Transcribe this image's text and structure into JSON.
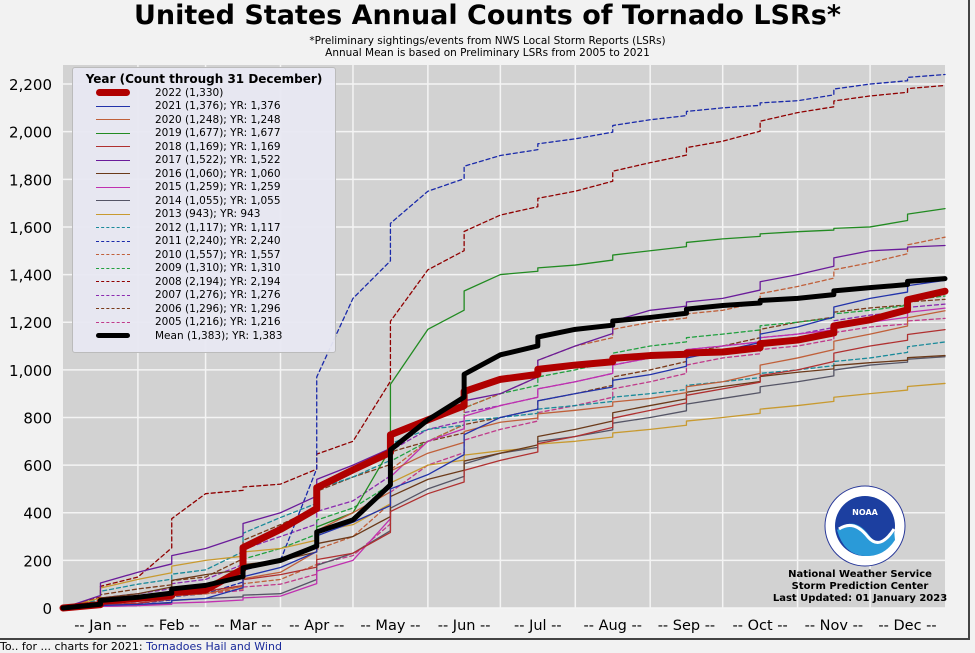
{
  "title": "United States Annual Counts of Tornado LSRs*",
  "subtitle": [
    "*Preliminary sightings/events from NWS Local Storm Reports (LSRs)",
    "Annual Mean is based on Preliminary LSRs from 2005 to 2021"
  ],
  "credit": [
    "National Weather Service",
    "Storm Prediction Center",
    "Last Updated: 01 January 2023"
  ],
  "footer": {
    "text": "To.. for ... charts for 2021:",
    "link": "Tornadoes Hail and Wind"
  },
  "chart_data": {
    "type": "line",
    "title": "United States Annual Counts of Tornado LSRs*",
    "legend_title": "Year (Count through 31 December)",
    "legend_placement": "top-left",
    "grid": true,
    "ylim": [
      0,
      2280
    ],
    "yticks": [
      0,
      200,
      400,
      600,
      800,
      1000,
      1200,
      1400,
      1600,
      1800,
      2000,
      2200
    ],
    "ytick_labels": [
      "0",
      "200",
      "400",
      "600",
      "800",
      "1,000",
      "1,200",
      "1,400",
      "1,600",
      "1,800",
      "2,000",
      "2,200"
    ],
    "xtick_labels": [
      "-- Jan --",
      "-- Feb --",
      "-- Mar --",
      "-- Apr --",
      "-- May --",
      "-- Jun --",
      "-- Jul --",
      "-- Aug --",
      "-- Sep --",
      "-- Oct --",
      "-- Nov --",
      "-- Dec --"
    ],
    "x": [
      "Jan 1",
      "Jan 31",
      "Feb 28",
      "Mar 31",
      "Apr 30",
      "May 31",
      "Jun 30",
      "Jul 31",
      "Aug 31",
      "Sep 30",
      "Oct 31",
      "Nov 30",
      "Dec 31"
    ],
    "series": [
      {
        "name": "2022 (1,330)",
        "color": "#b00000",
        "dash": false,
        "width": 7,
        "values": [
          0,
          40,
          75,
          330,
          580,
          790,
          960,
          1020,
          1060,
          1075,
          1125,
          1210,
          1330
        ]
      },
      {
        "name": "2021 (1,376); YR: 1,376",
        "color": "#2233aa",
        "dash": false,
        "width": 1.3,
        "values": [
          0,
          15,
          40,
          170,
          360,
          560,
          800,
          900,
          980,
          1080,
          1180,
          1300,
          1376
        ]
      },
      {
        "name": "2020 (1,248); YR: 1,248",
        "color": "#c0603a",
        "dash": false,
        "width": 1.3,
        "values": [
          0,
          30,
          60,
          150,
          400,
          650,
          780,
          830,
          880,
          950,
          1050,
          1150,
          1248
        ]
      },
      {
        "name": "2019 (1,677); YR: 1,677",
        "color": "#228b22",
        "dash": false,
        "width": 1.3,
        "values": [
          0,
          30,
          90,
          200,
          400,
          1170,
          1400,
          1440,
          1500,
          1550,
          1580,
          1600,
          1677
        ]
      },
      {
        "name": "2018 (1,169); YR: 1,169",
        "color": "#b03030",
        "dash": false,
        "width": 1.3,
        "values": [
          0,
          20,
          70,
          140,
          230,
          480,
          620,
          720,
          830,
          920,
          1000,
          1100,
          1169
        ]
      },
      {
        "name": "2017 (1,522); YR: 1,522",
        "color": "#6a1b9a",
        "dash": false,
        "width": 1.3,
        "values": [
          0,
          150,
          250,
          400,
          600,
          800,
          900,
          1100,
          1250,
          1300,
          1400,
          1500,
          1522
        ]
      },
      {
        "name": "2016 (1,060); YR: 1,060",
        "color": "#6b3a1a",
        "dash": false,
        "width": 1.3,
        "values": [
          0,
          60,
          140,
          200,
          300,
          540,
          650,
          750,
          850,
          930,
          990,
          1030,
          1060
        ]
      },
      {
        "name": "2015 (1,259); YR: 1,259",
        "color": "#c030b0",
        "dash": false,
        "width": 1.3,
        "values": [
          0,
          10,
          25,
          50,
          200,
          700,
          850,
          950,
          1050,
          1100,
          1150,
          1200,
          1259
        ]
      },
      {
        "name": "2014 (1,055); YR: 1,055",
        "color": "#555566",
        "dash": false,
        "width": 1.3,
        "values": [
          0,
          10,
          40,
          60,
          230,
          500,
          650,
          720,
          800,
          880,
          950,
          1020,
          1055
        ]
      },
      {
        "name": "2013 (943); YR: 943",
        "color": "#c89a30",
        "dash": false,
        "width": 1.3,
        "values": [
          0,
          120,
          200,
          250,
          350,
          600,
          660,
          700,
          750,
          800,
          850,
          900,
          943
        ]
      },
      {
        "name": "2012 (1,117); YR: 1,117",
        "color": "#1a8a9a",
        "dash": true,
        "width": 1.3,
        "values": [
          0,
          100,
          160,
          380,
          550,
          750,
          800,
          850,
          900,
          950,
          1000,
          1050,
          1117
        ]
      },
      {
        "name": "2011 (2,240); YR: 2,240",
        "color": "#1a2aaa",
        "dash": true,
        "width": 1.3,
        "values": [
          0,
          20,
          60,
          200,
          1300,
          1750,
          1900,
          1970,
          2050,
          2100,
          2130,
          2200,
          2240
        ]
      },
      {
        "name": "2010 (1,557); YR: 1,557",
        "color": "#c0603a",
        "dash": true,
        "width": 1.3,
        "values": [
          0,
          20,
          60,
          120,
          300,
          700,
          900,
          1100,
          1200,
          1250,
          1350,
          1450,
          1557
        ]
      },
      {
        "name": "2009 (1,310); YR: 1,310",
        "color": "#22a040",
        "dash": true,
        "width": 1.3,
        "values": [
          0,
          30,
          100,
          250,
          420,
          700,
          900,
          1000,
          1100,
          1150,
          1200,
          1250,
          1310
        ]
      },
      {
        "name": "2008 (2,194); YR: 2,194",
        "color": "#900000",
        "dash": true,
        "width": 1.3,
        "values": [
          0,
          130,
          480,
          520,
          700,
          1420,
          1650,
          1750,
          1870,
          1960,
          2080,
          2150,
          2194
        ]
      },
      {
        "name": "2007 (1,276); YR: 1,276",
        "color": "#8a2ab0",
        "dash": true,
        "width": 1.3,
        "values": [
          0,
          60,
          120,
          300,
          450,
          750,
          850,
          950,
          1050,
          1100,
          1150,
          1230,
          1276
        ]
      },
      {
        "name": "2006 (1,296); YR: 1,296",
        "color": "#7a3a1a",
        "dash": true,
        "width": 1.3,
        "values": [
          0,
          80,
          130,
          350,
          550,
          700,
          800,
          900,
          1000,
          1100,
          1200,
          1260,
          1296
        ]
      },
      {
        "name": "2005 (1,216); YR: 1,216",
        "color": "#c03a8a",
        "dash": true,
        "width": 1.3,
        "values": [
          0,
          40,
          60,
          100,
          220,
          600,
          750,
          850,
          950,
          1050,
          1100,
          1180,
          1216
        ]
      },
      {
        "name": "Mean (1,383); YR: 1,383",
        "color": "#000000",
        "dash": false,
        "width": 5,
        "values": [
          0,
          45,
          95,
          200,
          370,
          790,
          1063,
          1170,
          1220,
          1270,
          1300,
          1345,
          1383
        ]
      }
    ]
  }
}
